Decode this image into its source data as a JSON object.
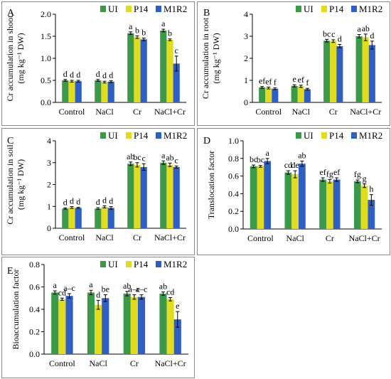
{
  "colors": {
    "UI": "#3a9a4a",
    "P14": "#e2dc21",
    "M1R2": "#2f5fc4",
    "panel_border": "#888888"
  },
  "legend": [
    "UI",
    "P14",
    "M1R2"
  ],
  "chart_data": [
    {
      "panel": "A",
      "type": "bar",
      "ylabel": "Cr accumulation in shoot",
      "ylabel_unit": "(mg kg⁻¹ DW)",
      "ylim": [
        0,
        2.0
      ],
      "yticks": [
        "0.0",
        "0.5",
        "1.0",
        "1.5",
        "2.0"
      ],
      "categories": [
        "Control",
        "NaCl",
        "Cr",
        "NaCl+Cr"
      ],
      "series": [
        {
          "name": "UI",
          "values": [
            0.5,
            0.5,
            1.57,
            1.63
          ],
          "errors": [
            0.02,
            0.02,
            0.03,
            0.03
          ],
          "letters": [
            "d",
            "d",
            "a",
            "a"
          ]
        },
        {
          "name": "P14",
          "values": [
            0.48,
            0.46,
            1.48,
            1.42
          ],
          "errors": [
            0.02,
            0.02,
            0.03,
            0.02
          ],
          "letters": [
            "d",
            "d",
            "b",
            "b"
          ]
        },
        {
          "name": "M1R2",
          "values": [
            0.48,
            0.47,
            1.43,
            0.88
          ],
          "errors": [
            0.02,
            0.02,
            0.03,
            0.17
          ],
          "letters": [
            "d",
            "d",
            "b",
            "c"
          ]
        }
      ]
    },
    {
      "panel": "B",
      "type": "bar",
      "ylabel": "Cr accumulation in root",
      "ylabel_unit": "(mg kg⁻¹ DW)",
      "ylim": [
        0,
        4
      ],
      "yticks": [
        "0",
        "1",
        "2",
        "3",
        "4"
      ],
      "categories": [
        "Control",
        "NaCl",
        "Cr",
        "NaCl+Cr"
      ],
      "series": [
        {
          "name": "UI",
          "values": [
            0.68,
            0.75,
            2.8,
            3.0
          ],
          "errors": [
            0.04,
            0.05,
            0.06,
            0.08
          ],
          "letters": [
            "ef",
            "e",
            "bc",
            "a"
          ]
        },
        {
          "name": "P14",
          "values": [
            0.65,
            0.73,
            2.78,
            2.95
          ],
          "errors": [
            0.04,
            0.05,
            0.06,
            0.15
          ],
          "letters": [
            "ef",
            "ef",
            "c",
            "ab"
          ]
        },
        {
          "name": "M1R2",
          "values": [
            0.62,
            0.6,
            2.55,
            2.6
          ],
          "errors": [
            0.04,
            0.04,
            0.08,
            0.18
          ],
          "letters": [
            "f",
            "f",
            "d",
            "d"
          ]
        }
      ]
    },
    {
      "panel": "C",
      "type": "bar",
      "ylabel": "Cr accumulation in soil",
      "ylabel_unit": "(mg kg⁻¹ DW)",
      "ylim": [
        0,
        4
      ],
      "yticks": [
        "0",
        "1",
        "2",
        "3",
        "4"
      ],
      "categories": [
        "Control",
        "NaCl",
        "Cr",
        "NaCl+Cr"
      ],
      "series": [
        {
          "name": "UI",
          "values": [
            0.9,
            0.9,
            2.95,
            3.0
          ],
          "errors": [
            0.03,
            0.04,
            0.08,
            0.08
          ],
          "letters": [
            "d",
            "d",
            "ab",
            "a"
          ]
        },
        {
          "name": "P14",
          "values": [
            0.95,
            0.98,
            2.9,
            2.9
          ],
          "errors": [
            0.04,
            0.05,
            0.1,
            0.08
          ],
          "letters": [
            "d",
            "d",
            "bc",
            "ab"
          ]
        },
        {
          "name": "M1R2",
          "values": [
            0.93,
            0.93,
            2.8,
            2.8
          ],
          "errors": [
            0.03,
            0.06,
            0.15,
            0.05
          ],
          "letters": [
            "d",
            "d",
            "c",
            "c"
          ]
        }
      ]
    },
    {
      "panel": "D",
      "type": "bar",
      "ylabel": "Translocation factor",
      "ylabel_unit": "",
      "ylim": [
        0,
        1.0
      ],
      "yticks": [
        "0.0",
        "0.2",
        "0.4",
        "0.6",
        "0.8",
        "1.0"
      ],
      "categories": [
        "Control",
        "NaCl",
        "Cr",
        "NaCl+Cr"
      ],
      "series": [
        {
          "name": "UI",
          "values": [
            0.71,
            0.64,
            0.56,
            0.54
          ],
          "errors": [
            0.015,
            0.02,
            0.02,
            0.015
          ],
          "letters": [
            "bc",
            "cd",
            "ef",
            "fg"
          ]
        },
        {
          "name": "P14",
          "values": [
            0.71,
            0.62,
            0.54,
            0.49
          ],
          "errors": [
            0.01,
            0.04,
            0.02,
            0.02
          ],
          "letters": [
            "bc",
            "de",
            "fg",
            "g"
          ]
        },
        {
          "name": "M1R2",
          "values": [
            0.77,
            0.74,
            0.56,
            0.33
          ],
          "errors": [
            0.03,
            0.03,
            0.02,
            0.06
          ],
          "letters": [
            "a",
            "ab",
            "ef",
            "h"
          ]
        }
      ]
    },
    {
      "panel": "E",
      "type": "bar",
      "ylabel": "Bioaccumulation factor",
      "ylabel_unit": "",
      "ylim": [
        0,
        0.8
      ],
      "yticks": [
        "0.0",
        "0.2",
        "0.4",
        "0.6",
        "0.8"
      ],
      "categories": [
        "Control",
        "NaCl",
        "Cr",
        "NaCl+Cr"
      ],
      "series": [
        {
          "name": "UI",
          "values": [
            0.55,
            0.55,
            0.54,
            0.54
          ],
          "errors": [
            0.015,
            0.02,
            0.02,
            0.015
          ],
          "letters": [
            "a",
            "a",
            "ab",
            "ab"
          ]
        },
        {
          "name": "P14",
          "values": [
            0.49,
            0.44,
            0.51,
            0.49
          ],
          "errors": [
            0.01,
            0.04,
            0.02,
            0.015
          ],
          "letters": [
            "cd",
            "d",
            "a–c",
            "cd"
          ]
        },
        {
          "name": "M1R2",
          "values": [
            0.52,
            0.5,
            0.51,
            0.31
          ],
          "errors": [
            0.02,
            0.03,
            0.02,
            0.07
          ],
          "letters": [
            "a–c",
            "be",
            "a–c",
            "e"
          ]
        }
      ]
    }
  ]
}
